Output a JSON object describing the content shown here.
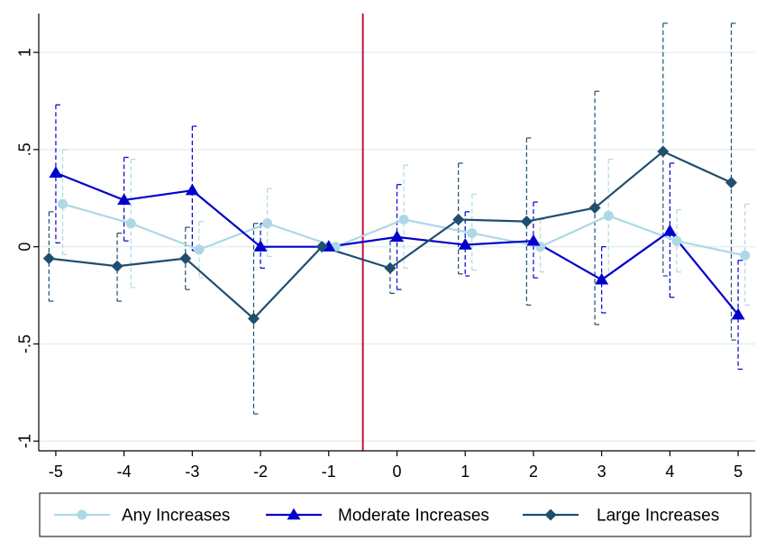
{
  "chart_data": {
    "type": "line",
    "title": "",
    "xlabel": "",
    "ylabel": "",
    "xlim": [
      -5.25,
      5.25
    ],
    "ylim": [
      -1.05,
      1.2
    ],
    "x_ticks": [
      -5,
      -4,
      -3,
      -2,
      -1,
      0,
      1,
      2,
      3,
      4,
      5
    ],
    "x_tick_labels": [
      "-5",
      "-4",
      "-3",
      "-2",
      "-1",
      "0",
      "1",
      "2",
      "3",
      "4",
      "5"
    ],
    "y_ticks": [
      -1,
      -0.5,
      0,
      0.5,
      1
    ],
    "y_tick_labels": [
      "-1",
      "-.5",
      "0",
      ".5",
      "1"
    ],
    "grid": "horizontal",
    "reference_line": {
      "x": -0.5,
      "color": "#c0143c"
    },
    "legend_position": "bottom",
    "series": [
      {
        "name": "Any Increases",
        "color": "#add8e6",
        "marker": "circle",
        "x_offset": 0.1,
        "x": [
          -5,
          -4,
          -3,
          -2,
          -1,
          0,
          1,
          2,
          3,
          4,
          5
        ],
        "y": [
          0.22,
          0.12,
          -0.015,
          0.12,
          0.0,
          0.14,
          0.07,
          0.0,
          0.16,
          0.03,
          -0.045
        ],
        "ci_low": [
          -0.04,
          -0.21,
          -0.16,
          -0.05,
          0.0,
          -0.11,
          -0.12,
          -0.13,
          -0.14,
          -0.13,
          -0.3
        ],
        "ci_high": [
          0.5,
          0.45,
          0.13,
          0.3,
          0.0,
          0.42,
          0.27,
          0.14,
          0.45,
          0.19,
          0.22
        ]
      },
      {
        "name": "Moderate Increases",
        "color": "#0000cd",
        "marker": "triangle",
        "x_offset": 0.0,
        "x": [
          -5,
          -4,
          -3,
          -2,
          -1,
          0,
          1,
          2,
          3,
          4,
          5
        ],
        "y": [
          0.38,
          0.24,
          0.29,
          0.0,
          0.0,
          0.05,
          0.01,
          0.03,
          -0.17,
          0.08,
          -0.35
        ],
        "ci_low": [
          0.02,
          0.03,
          -0.02,
          -0.11,
          0.0,
          -0.22,
          -0.15,
          -0.16,
          -0.34,
          -0.26,
          -0.63
        ],
        "ci_high": [
          0.73,
          0.46,
          0.62,
          0.12,
          0.0,
          0.32,
          0.18,
          0.23,
          0.0,
          0.43,
          -0.07
        ]
      },
      {
        "name": "Large Increases",
        "color": "#1f4e6e",
        "marker": "diamond",
        "x_offset": -0.1,
        "x": [
          -5,
          -4,
          -3,
          -2,
          -1,
          0,
          1,
          2,
          3,
          4,
          5
        ],
        "y": [
          -0.06,
          -0.1,
          -0.06,
          -0.37,
          0.0,
          -0.11,
          0.14,
          0.13,
          0.2,
          0.49,
          0.33
        ],
        "ci_low": [
          -0.28,
          -0.28,
          -0.22,
          -0.86,
          0.0,
          -0.24,
          -0.14,
          -0.3,
          -0.4,
          -0.15,
          -0.48
        ],
        "ci_high": [
          0.18,
          0.07,
          0.1,
          0.12,
          0.0,
          0.03,
          0.43,
          0.56,
          0.8,
          1.15,
          1.15
        ]
      }
    ]
  }
}
